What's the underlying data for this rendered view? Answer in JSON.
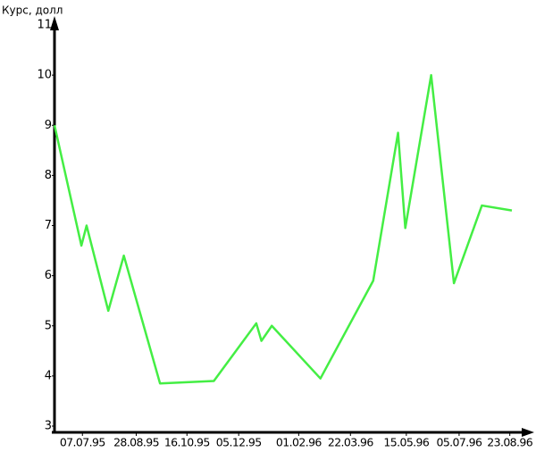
{
  "chart_data": {
    "type": "line",
    "y_label": "Курс, долл",
    "x": [
      "10.06.95",
      "06.07.95",
      "11.07.95",
      "01.08.95",
      "16.08.95",
      "20.09.95",
      "11.11.95",
      "22.12.95",
      "27.12.95",
      "06.01.96",
      "22.02.96",
      "13.04.96",
      "07.05.96",
      "14.05.96",
      "08.06.96",
      "30.06.96",
      "27.07.96",
      "25.08.96"
    ],
    "series": [
      {
        "color": "#44ee44",
        "values": [
          9.0,
          6.6,
          7.0,
          5.3,
          6.4,
          3.85,
          3.9,
          5.05,
          4.7,
          5.0,
          3.95,
          5.9,
          8.85,
          6.95,
          10.0,
          5.85,
          7.4,
          7.3
        ]
      }
    ],
    "xlim": [
      "10.06.95",
      "13.09.96"
    ],
    "xticks": [
      "07.07.95",
      "28.08.95",
      "16.10.95",
      "05.12.95",
      "01.02.96",
      "22.03.96",
      "15.05.96",
      "05.07.96",
      "23.08.96"
    ],
    "ylim": [
      3,
      11
    ],
    "yticks": [
      3,
      4,
      5,
      6,
      7,
      8,
      9,
      10,
      11
    ]
  }
}
